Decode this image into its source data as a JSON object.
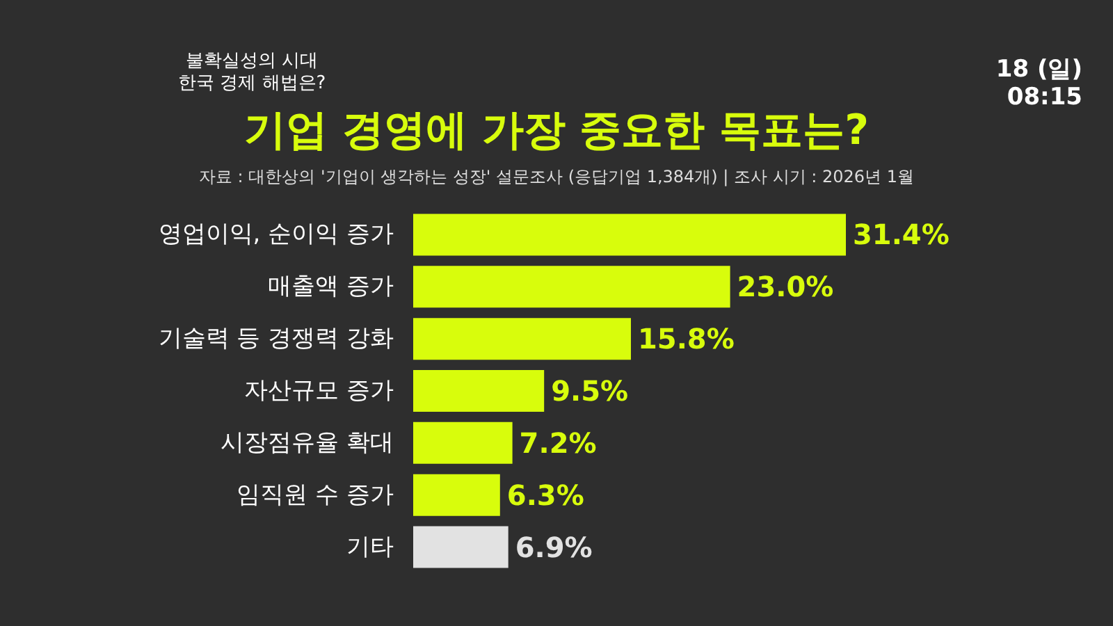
{
  "chart_data": {
    "type": "bar",
    "orientation": "horizontal",
    "title": "기업 경영에 가장 중요한 목표는?",
    "subtitle": "자료 : 대한상의 '기업이 생각하는 성장' 설문조사 (응답기업 1,384개) | 조사 시기 : 2026년 1월",
    "annotations": [
      "불확실성의 시대\n한국 경제 해법은?",
      "18 (일)\n08:15"
    ],
    "categories": [
      "영업이익, 순이익 증가",
      "매출액 증가",
      "기술력 등 경쟁력 강화",
      "자산규모 증가",
      "시장점유율 확대",
      "임직원 수 증가",
      "기타"
    ],
    "values": [
      31.4,
      23.0,
      15.8,
      9.5,
      7.2,
      6.3,
      6.9
    ],
    "value_labels": [
      "31.4%",
      "23.0%",
      "15.8%",
      "9.5%",
      "7.2%",
      "6.3%",
      "6.9%"
    ],
    "colors": [
      "#d8fd0c",
      "#d8fd0c",
      "#d8fd0c",
      "#d8fd0c",
      "#d8fd0c",
      "#d8fd0c",
      "#e2e2e2"
    ]
  }
}
